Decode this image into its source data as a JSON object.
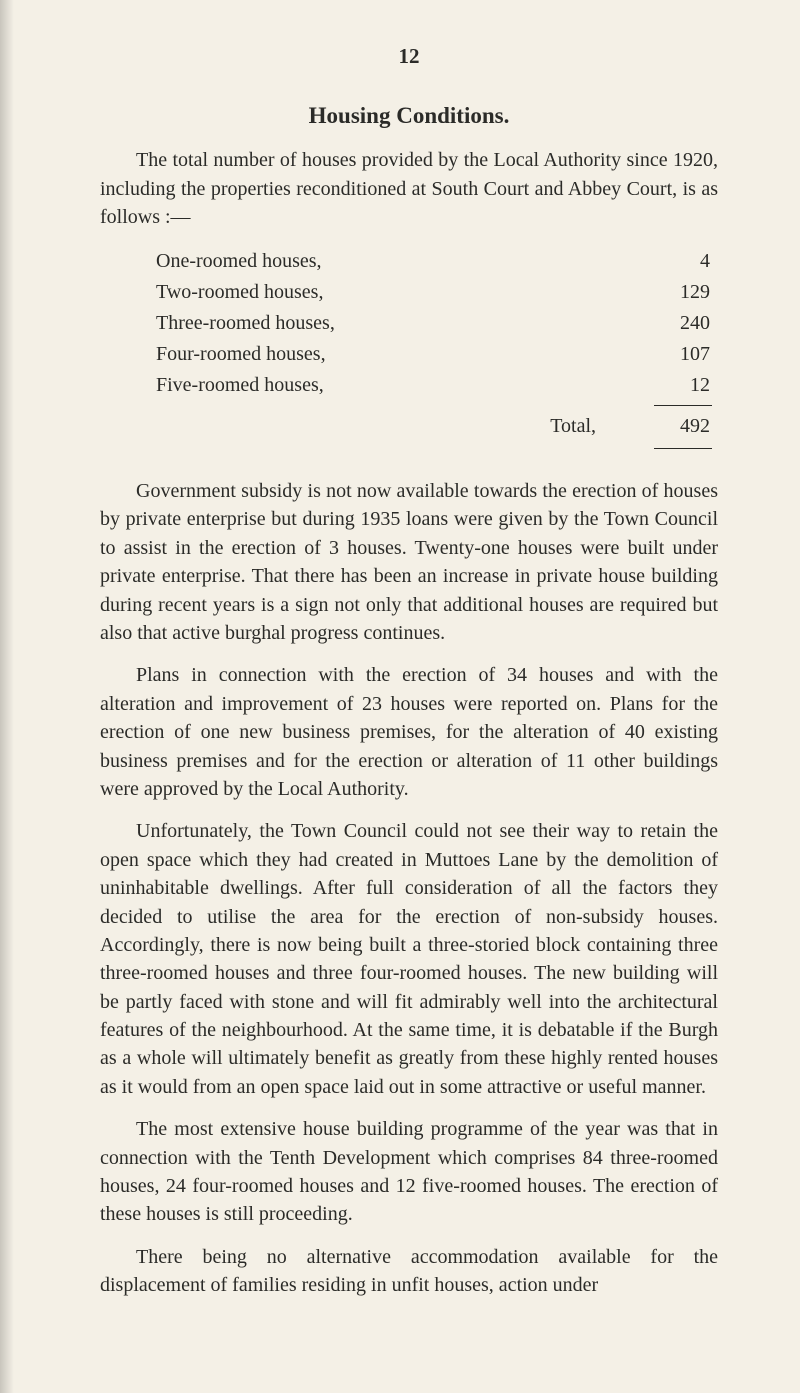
{
  "page_number": "12",
  "section_title": "Housing Conditions.",
  "intro_paragraph": "The total number of houses provided by the Local Authority since 1920, including the properties reconditioned at South Court and Abbey Court, is as follows :—",
  "house_table": {
    "rows": [
      {
        "label": "One-roomed houses,",
        "value": "4"
      },
      {
        "label": "Two-roomed houses,",
        "value": "129"
      },
      {
        "label": "Three-roomed houses,",
        "value": "240"
      },
      {
        "label": "Four-roomed houses,",
        "value": "107"
      },
      {
        "label": "Five-roomed houses,",
        "value": "12"
      }
    ],
    "total_label": "Total,",
    "total_value": "492"
  },
  "paragraphs": [
    "Government subsidy is not now available towards the erection of houses by private enterprise but during 1935 loans were given by the Town Council to assist in the erection of 3 houses. Twenty-one houses were built under private enterprise. That there has been an increase in private house building during recent years is a sign not only that additional houses are required but also that active burghal progress continues.",
    "Plans in connection with the erection of 34 houses and with the alteration and improvement of 23 houses were reported on. Plans for the erection of one new business premises, for the alteration of 40 existing business premises and for the erection or alteration of 11 other buildings were approved by the Local Authority.",
    "Unfortunately, the Town Council could not see their way to retain the open space which they had created in Muttoes Lane by the demolition of uninhabitable dwellings. After full consideration of all the factors they decided to utilise the area for the erection of non-subsidy houses. Accordingly, there is now being built a three-storied block containing three three-roomed houses and three four-roomed houses. The new building will be partly faced with stone and will fit admirably well into the architectural features of the neighbourhood. At the same time, it is debatable if the Burgh as a whole will ultimately benefit as greatly from these highly rented houses as it would from an open space laid out in some attractive or useful manner.",
    "The most extensive house building programme of the year was that in connection with the Tenth Development which comprises 84 three-roomed houses, 24 four-roomed houses and 12 five-roomed houses. The erection of these houses is still proceeding.",
    "There being no alternative accommodation available for the displacement of families residing in unfit houses, action under"
  ],
  "colors": {
    "background": "#f4f0e6",
    "text": "#2b2b28"
  },
  "typography": {
    "body_fontsize_pt": 15,
    "title_fontsize_pt": 17,
    "font_family": "Georgia, Times New Roman, serif"
  }
}
